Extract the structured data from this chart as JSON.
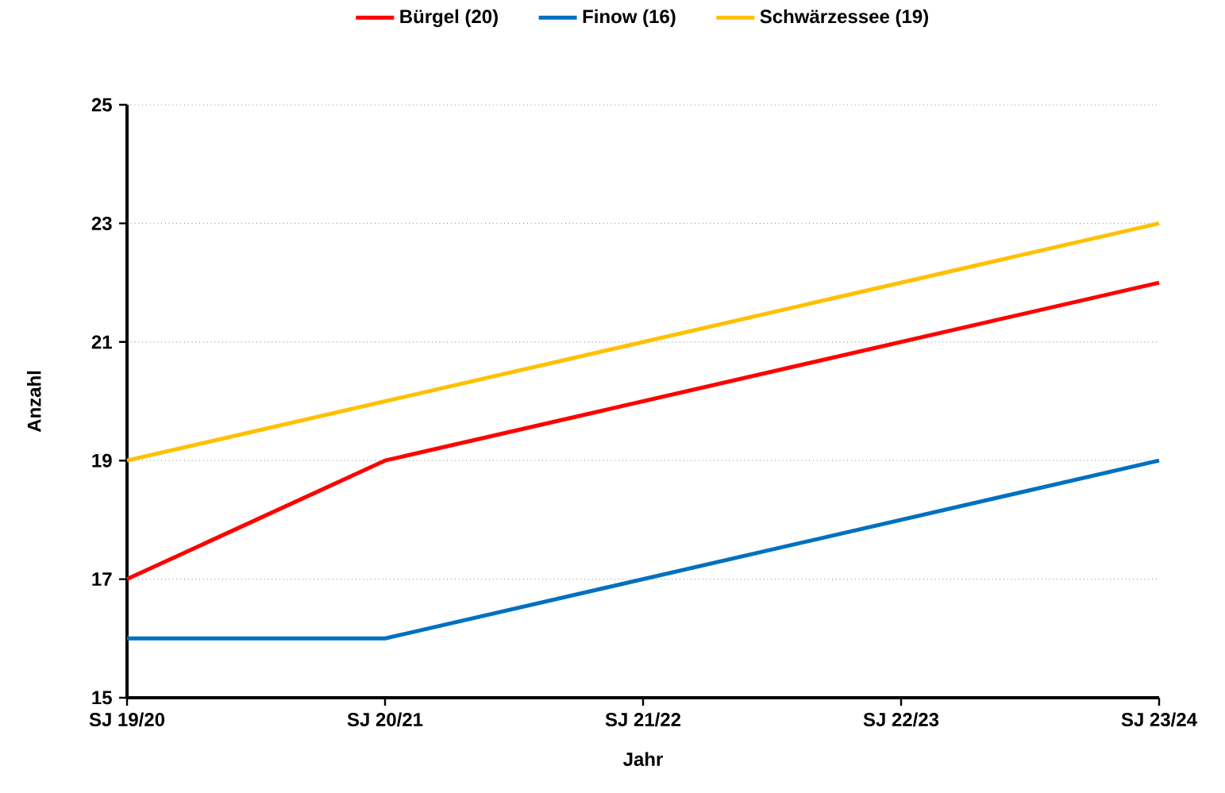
{
  "chart_data": {
    "type": "line",
    "xlabel": "Jahr",
    "ylabel": "Anzahl",
    "categories": [
      "SJ 19/20",
      "SJ 20/21",
      "SJ 21/22",
      "SJ 22/23",
      "SJ 23/24"
    ],
    "series": [
      {
        "name": "Bürgel (20)",
        "color": "#ff0000",
        "values": [
          17,
          19,
          20,
          21,
          22
        ]
      },
      {
        "name": "Finow (16)",
        "color": "#0070c0",
        "values": [
          16,
          16,
          17,
          18,
          19
        ]
      },
      {
        "name": "Schwärzessee (19)",
        "color": "#ffc000",
        "values": [
          19,
          20,
          21,
          22,
          23
        ]
      }
    ],
    "ylim": [
      15,
      25
    ],
    "yticks": [
      15,
      17,
      19,
      21,
      23,
      25
    ],
    "grid": "y",
    "legend": "top",
    "marker": "none"
  }
}
